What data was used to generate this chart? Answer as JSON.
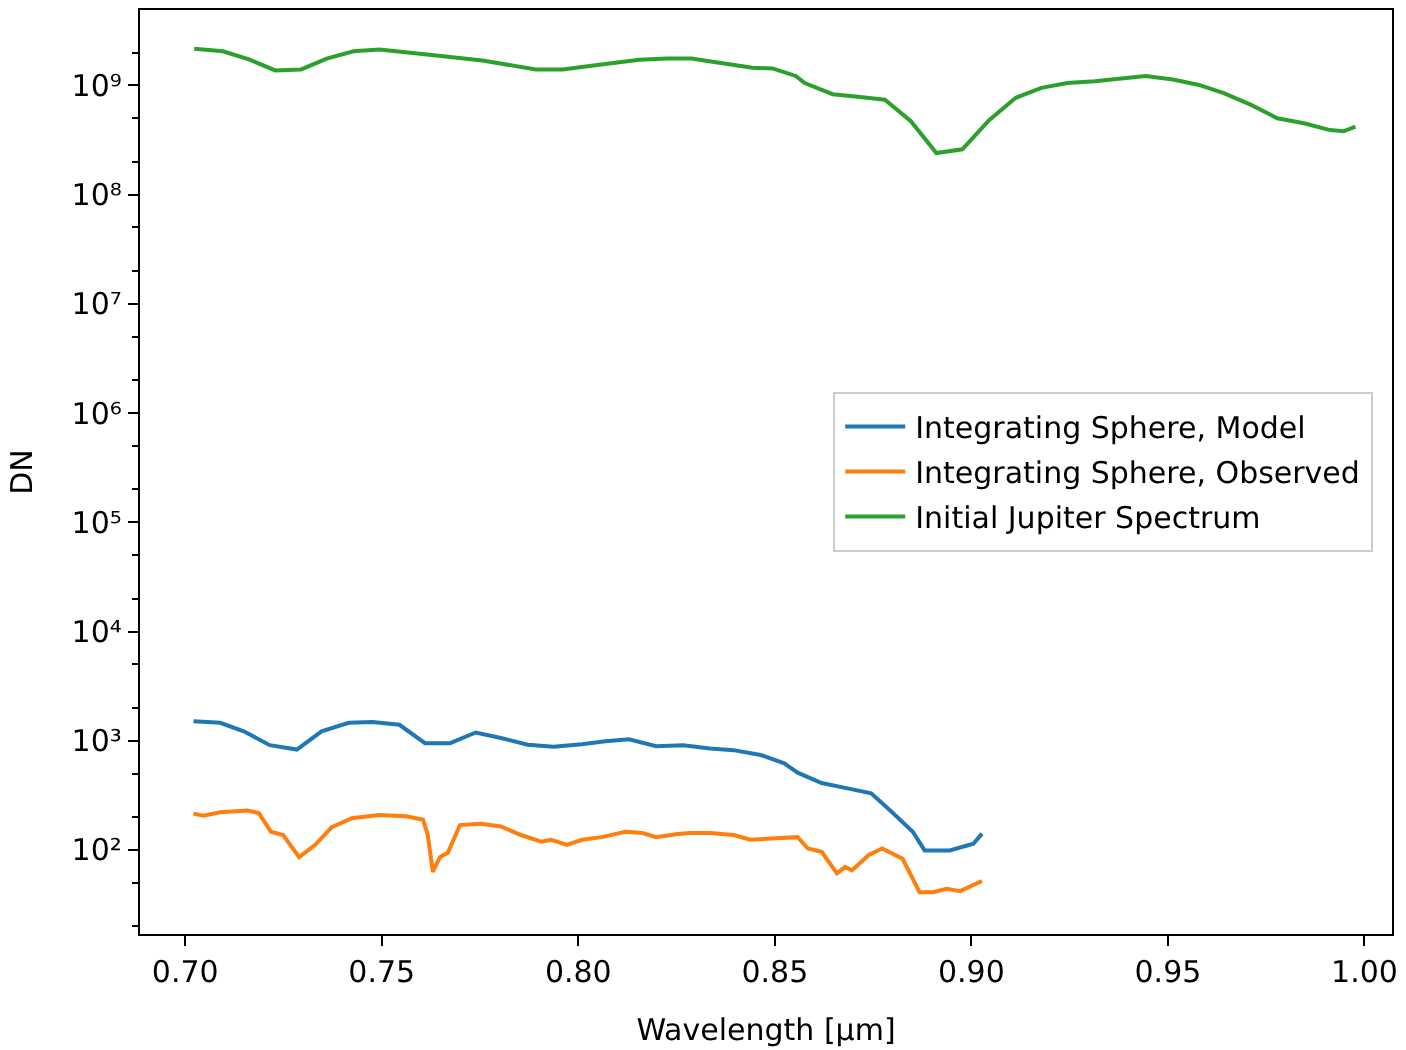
{
  "chart_data": {
    "type": "line",
    "xlabel": "Wavelength [μm]",
    "ylabel": "DN",
    "log": "y",
    "legend": "right",
    "marker": "none",
    "line_style": "solid",
    "xlim": [
      0.6885,
      1.007
    ],
    "ylim": [
      17,
      4900000000.0
    ],
    "xticks": [
      {
        "value": 0.7,
        "label": "0.70"
      },
      {
        "value": 0.75,
        "label": "0.75"
      },
      {
        "value": 0.8,
        "label": "0.80"
      },
      {
        "value": 0.85,
        "label": "0.85"
      },
      {
        "value": 0.9,
        "label": "0.90"
      },
      {
        "value": 0.95,
        "label": "0.95"
      },
      {
        "value": 1.0,
        "label": "1.00"
      }
    ],
    "yticks": [
      {
        "value": 100,
        "label": "10²"
      },
      {
        "value": 1000,
        "label": "10³"
      },
      {
        "value": 10000,
        "label": "10⁴"
      },
      {
        "value": 100000,
        "label": "10⁵"
      },
      {
        "value": 1000000,
        "label": "10⁶"
      },
      {
        "value": 10000000,
        "label": "10⁷"
      },
      {
        "value": 100000000,
        "label": "10⁸"
      },
      {
        "value": 1000000000,
        "label": "10⁹"
      }
    ],
    "series": [
      {
        "name": "Integrating Sphere, Model",
        "color": "#1f77b4",
        "x": [
          0.7021,
          0.7089,
          0.7149,
          0.7215,
          0.7284,
          0.7347,
          0.7416,
          0.7476,
          0.7545,
          0.761,
          0.7674,
          0.7739,
          0.7803,
          0.7871,
          0.7937,
          0.8009,
          0.8069,
          0.8129,
          0.8198,
          0.8267,
          0.8335,
          0.8395,
          0.8464,
          0.8524,
          0.8558,
          0.8619,
          0.8679,
          0.8745,
          0.8799,
          0.8851,
          0.8881,
          0.8945,
          0.9005,
          0.9027
        ],
        "values": [
          1510,
          1460,
          1220,
          910,
          830,
          1220,
          1460,
          1480,
          1400,
          950,
          950,
          1190,
          1060,
          920,
          880,
          930,
          990,
          1030,
          890,
          910,
          850,
          820,
          740,
          620,
          510,
          410,
          370,
          330,
          220,
          147,
          99,
          99,
          114,
          141
        ]
      },
      {
        "name": "Integrating Sphere, Observed",
        "color": "#ff7f0e",
        "x": [
          0.7021,
          0.7046,
          0.7089,
          0.7158,
          0.7187,
          0.7218,
          0.7249,
          0.729,
          0.733,
          0.7373,
          0.7424,
          0.7493,
          0.7562,
          0.7605,
          0.7617,
          0.763,
          0.7648,
          0.7668,
          0.7699,
          0.7751,
          0.7803,
          0.7854,
          0.7906,
          0.7931,
          0.7971,
          0.8009,
          0.806,
          0.812,
          0.8163,
          0.8198,
          0.8249,
          0.8284,
          0.8335,
          0.8395,
          0.8438,
          0.849,
          0.8558,
          0.8584,
          0.8619,
          0.8658,
          0.8679,
          0.8696,
          0.8739,
          0.8773,
          0.8825,
          0.8868,
          0.8902,
          0.8937,
          0.8971,
          0.9027
        ],
        "values": [
          215,
          206,
          221,
          230,
          218,
          147,
          137,
          86,
          111,
          162,
          195,
          209,
          203,
          189,
          137,
          63,
          86,
          94,
          169,
          174,
          164,
          137,
          119,
          124,
          111,
          124,
          131,
          147,
          143,
          131,
          139,
          143,
          143,
          137,
          124,
          127,
          131,
          103,
          96,
          61,
          70,
          65,
          90,
          103,
          83,
          41,
          41,
          44,
          42,
          52
        ]
      },
      {
        "name": "Initial Jupiter Spectrum",
        "color": "#2ca02c",
        "x": [
          0.7023,
          0.7096,
          0.7164,
          0.7229,
          0.7295,
          0.736,
          0.7428,
          0.7494,
          0.7627,
          0.7756,
          0.7892,
          0.796,
          0.8049,
          0.8155,
          0.8225,
          0.8288,
          0.8354,
          0.8443,
          0.8494,
          0.8553,
          0.8576,
          0.8647,
          0.8705,
          0.878,
          0.8846,
          0.8911,
          0.8977,
          0.9045,
          0.9113,
          0.9178,
          0.9244,
          0.9314,
          0.9443,
          0.9513,
          0.9579,
          0.9642,
          0.9713,
          0.9778,
          0.9846,
          0.9912,
          0.9947,
          0.9977
        ],
        "values": [
          2170000000,
          2050000000,
          1720000000,
          1370000000,
          1400000000,
          1760000000,
          2050000000,
          2130000000,
          1900000000,
          1690000000,
          1400000000,
          1400000000,
          1540000000,
          1720000000,
          1760000000,
          1760000000,
          1620000000,
          1450000000,
          1430000000,
          1220000000,
          1050000000,
          830000000,
          790000000,
          740000000,
          470000000,
          240000000,
          260000000,
          480000000,
          770000000,
          950000000,
          1050000000,
          1090000000,
          1220000000,
          1130000000,
          1010000000,
          850000000,
          660000000,
          500000000,
          450000000,
          390000000,
          380000000,
          420000000
        ]
      }
    ]
  }
}
